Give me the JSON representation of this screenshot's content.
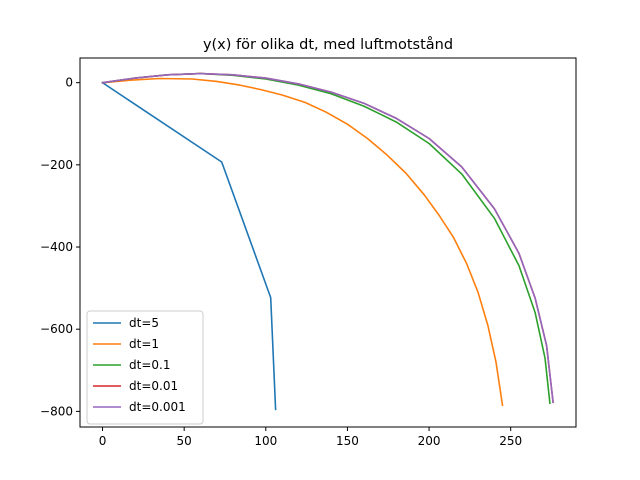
{
  "chart_data": {
    "type": "line",
    "title": "y(x) för olika dt, med luftmotstånd",
    "xlabel": "",
    "ylabel": "",
    "xlim": [
      -13.8,
      290.0
    ],
    "ylim": [
      -838,
      60
    ],
    "xticks": [
      0,
      50,
      100,
      150,
      200,
      250
    ],
    "yticks": [
      0,
      -200,
      -400,
      -600,
      -800
    ],
    "xtick_labels": [
      "0",
      "50",
      "100",
      "150",
      "200",
      "250"
    ],
    "ytick_labels": [
      "0",
      "−200",
      "−400",
      "−600",
      "−800"
    ],
    "grid": false,
    "legend": "lower-left",
    "series": [
      {
        "name": "dt=5",
        "color": "#1f77b4",
        "x": [
          0,
          73,
          103,
          106
        ],
        "y": [
          0,
          -193,
          -523,
          -795
        ]
      },
      {
        "name": "dt=1",
        "color": "#ff7f0e",
        "x": [
          0,
          17,
          35,
          55,
          70,
          84,
          97,
          110,
          124,
          137,
          150,
          162,
          174,
          186,
          197,
          206,
          215,
          223,
          230,
          236,
          241,
          245
        ],
        "y": [
          0,
          6,
          10,
          9,
          3,
          -6,
          -17,
          -30,
          -48,
          -72,
          -101,
          -135,
          -175,
          -221,
          -273,
          -322,
          -377,
          -440,
          -510,
          -590,
          -680,
          -785
        ]
      },
      {
        "name": "dt=0.1",
        "color": "#2ca02c",
        "x": [
          0,
          20,
          40,
          60,
          80,
          100,
          120,
          140,
          160,
          180,
          200,
          220,
          240,
          255,
          265,
          271,
          274
        ],
        "y": [
          0,
          11,
          19,
          22,
          18,
          9,
          -6,
          -27,
          -57,
          -96,
          -148,
          -222,
          -330,
          -445,
          -560,
          -670,
          -780
        ]
      },
      {
        "name": "dt=0.01",
        "color": "#d62728",
        "x": [
          0,
          20,
          40,
          60,
          80,
          100,
          120,
          140,
          160,
          180,
          200,
          220,
          240,
          255,
          265,
          272,
          276
        ],
        "y": [
          0,
          11,
          19,
          22,
          19,
          11,
          -3,
          -23,
          -50,
          -87,
          -136,
          -205,
          -307,
          -415,
          -525,
          -640,
          -778
        ]
      },
      {
        "name": "dt=0.001",
        "color": "#9467bd",
        "x": [
          0,
          20,
          40,
          60,
          80,
          100,
          120,
          140,
          160,
          180,
          200,
          220,
          240,
          255,
          265,
          272,
          276
        ],
        "y": [
          0,
          11,
          19,
          22,
          19,
          11,
          -3,
          -23,
          -50,
          -87,
          -136,
          -205,
          -307,
          -415,
          -525,
          -640,
          -778
        ]
      }
    ]
  }
}
